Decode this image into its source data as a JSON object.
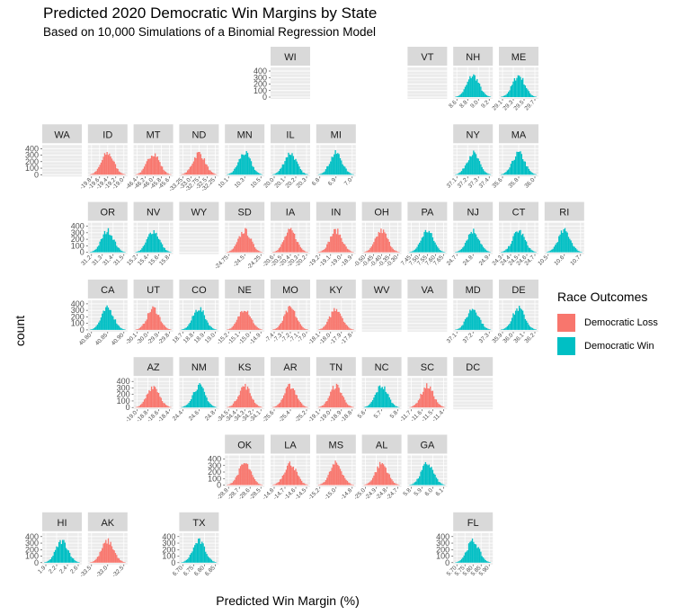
{
  "chart_data": {
    "type": "histogram-facet-map",
    "title": "Predicted 2020 Democratic Win Margins by State",
    "subtitle": "Based on 10,000 Simulations of a Binomial Regression Model",
    "xlabel": "Predicted Win Margin (%)",
    "ylabel": "count",
    "y_ticks": [
      "0",
      "100",
      "200",
      "300",
      "400"
    ],
    "ylim": [
      0,
      400
    ],
    "legend": {
      "title": "Race Outcomes",
      "position": "right",
      "entries": [
        {
          "label": "Democratic Loss",
          "color": "#F8766D"
        },
        {
          "label": "Democratic Win",
          "color": "#00BFC4"
        }
      ]
    },
    "panels": [
      {
        "state": "WI",
        "row": 0,
        "col": 5,
        "outcome": "none",
        "ticks": [],
        "show_y": true
      },
      {
        "state": "VT",
        "row": 0,
        "col": 8,
        "outcome": "none",
        "ticks": [],
        "show_y": false
      },
      {
        "state": "NH",
        "row": 0,
        "col": 9,
        "outcome": "win",
        "ticks": [
          "8.6",
          "8.8",
          "9.0",
          "9.2"
        ],
        "show_y": false
      },
      {
        "state": "ME",
        "row": 0,
        "col": 10,
        "outcome": "win",
        "ticks": [
          "29.1",
          "29.3",
          "29.5",
          "29.7"
        ],
        "show_y": false
      },
      {
        "state": "WA",
        "row": 1,
        "col": 0,
        "outcome": "none",
        "ticks": [],
        "show_y": true
      },
      {
        "state": "ID",
        "row": 1,
        "col": 1,
        "outcome": "loss",
        "ticks": [
          "-19.8",
          "-19.6",
          "-19.4",
          "-19.2",
          "-19.0"
        ],
        "show_y": false
      },
      {
        "state": "MT",
        "row": 1,
        "col": 2,
        "outcome": "loss",
        "ticks": [
          "-46.4",
          "-46.2",
          "-46.0",
          "-45.8",
          "-45.6"
        ],
        "show_y": false
      },
      {
        "state": "ND",
        "row": 1,
        "col": 3,
        "outcome": "loss",
        "ticks": [
          "-33.25",
          "-33.0",
          "-32.75",
          "-32.5",
          "-32.25"
        ],
        "show_y": false
      },
      {
        "state": "MN",
        "row": 1,
        "col": 4,
        "outcome": "win",
        "ticks": [
          "10.1",
          "10.3",
          "10.5"
        ],
        "show_y": false
      },
      {
        "state": "IL",
        "row": 1,
        "col": 5,
        "outcome": "win",
        "ticks": [
          "20.0",
          "20.1",
          "20.2",
          "20.3"
        ],
        "show_y": false
      },
      {
        "state": "MI",
        "row": 1,
        "col": 6,
        "outcome": "win",
        "ticks": [
          "6.8",
          "6.9",
          "7.0"
        ],
        "show_y": false
      },
      {
        "state": "NY",
        "row": 1,
        "col": 9,
        "outcome": "win",
        "ticks": [
          "37.1",
          "37.2",
          "37.3",
          "37.4"
        ],
        "show_y": false
      },
      {
        "state": "MA",
        "row": 1,
        "col": 10,
        "outcome": "win",
        "ticks": [
          "35.6",
          "35.8",
          "36.0"
        ],
        "show_y": false
      },
      {
        "state": "OR",
        "row": 2,
        "col": 1,
        "outcome": "win",
        "ticks": [
          "31.2",
          "31.3",
          "31.4",
          "31.5"
        ],
        "show_y": true
      },
      {
        "state": "NV",
        "row": 2,
        "col": 2,
        "outcome": "win",
        "ticks": [
          "15.2",
          "15.4",
          "15.6",
          "15.8"
        ],
        "show_y": false
      },
      {
        "state": "WY",
        "row": 2,
        "col": 3,
        "outcome": "none",
        "ticks": [],
        "show_y": false
      },
      {
        "state": "SD",
        "row": 2,
        "col": 4,
        "outcome": "loss",
        "ticks": [
          "-24.75",
          "-24.5",
          "-24.25"
        ],
        "show_y": false
      },
      {
        "state": "IA",
        "row": 2,
        "col": 5,
        "outcome": "loss",
        "ticks": [
          "-20.6",
          "-20.5",
          "-20.4",
          "-20.3",
          "-20.2"
        ],
        "show_y": false
      },
      {
        "state": "IN",
        "row": 2,
        "col": 6,
        "outcome": "loss",
        "ticks": [
          "-19.2",
          "-19.1",
          "-19.0",
          "-18.9"
        ],
        "show_y": false
      },
      {
        "state": "OH",
        "row": 2,
        "col": 7,
        "outcome": "loss",
        "ticks": [
          "-0.50",
          "-0.45",
          "-0.40",
          "-0.35",
          "-0.30"
        ],
        "show_y": false
      },
      {
        "state": "PA",
        "row": 2,
        "col": 8,
        "outcome": "win",
        "ticks": [
          "7.45",
          "7.50",
          "7.55",
          "7.60",
          "7.65"
        ],
        "show_y": false
      },
      {
        "state": "NJ",
        "row": 2,
        "col": 9,
        "outcome": "win",
        "ticks": [
          "24.7",
          "24.8",
          "24.9"
        ],
        "show_y": false
      },
      {
        "state": "CT",
        "row": 2,
        "col": 10,
        "outcome": "win",
        "ticks": [
          "24.3",
          "24.4",
          "24.5",
          "24.6",
          "24.7"
        ],
        "show_y": false
      },
      {
        "state": "RI",
        "row": 2,
        "col": 11,
        "outcome": "win",
        "ticks": [
          "10.5",
          "10.6",
          "10.7"
        ],
        "show_y": false
      },
      {
        "state": "CA",
        "row": 3,
        "col": 1,
        "outcome": "win",
        "ticks": [
          "40.80",
          "40.85",
          "40.90"
        ],
        "show_y": true
      },
      {
        "state": "UT",
        "row": 3,
        "col": 2,
        "outcome": "loss",
        "ticks": [
          "-30.1",
          "-30.0",
          "-29.9",
          "-29.8"
        ],
        "show_y": false
      },
      {
        "state": "CO",
        "row": 3,
        "col": 3,
        "outcome": "win",
        "ticks": [
          "18.7",
          "18.8",
          "18.9",
          "19.0"
        ],
        "show_y": false
      },
      {
        "state": "NE",
        "row": 3,
        "col": 4,
        "outcome": "loss",
        "ticks": [
          "-15.2",
          "-15.1",
          "-15.0",
          "-14.9"
        ],
        "show_y": false
      },
      {
        "state": "MO",
        "row": 3,
        "col": 5,
        "outcome": "loss",
        "ticks": [
          "-7.4",
          "-7.3",
          "-7.2",
          "-7.1",
          "-7.0"
        ],
        "show_y": false
      },
      {
        "state": "KY",
        "row": 3,
        "col": 6,
        "outcome": "loss",
        "ticks": [
          "-18.1",
          "-18.0",
          "-17.9",
          "-17.8"
        ],
        "show_y": false
      },
      {
        "state": "WV",
        "row": 3,
        "col": 7,
        "outcome": "none",
        "ticks": [],
        "show_y": false
      },
      {
        "state": "VA",
        "row": 3,
        "col": 8,
        "outcome": "none",
        "ticks": [],
        "show_y": false
      },
      {
        "state": "MD",
        "row": 3,
        "col": 9,
        "outcome": "win",
        "ticks": [
          "37.1",
          "37.2",
          "37.3"
        ],
        "show_y": false
      },
      {
        "state": "DE",
        "row": 3,
        "col": 10,
        "outcome": "win",
        "ticks": [
          "35.9",
          "36.0",
          "36.1",
          "36.2"
        ],
        "show_y": false
      },
      {
        "state": "AZ",
        "row": 4,
        "col": 2,
        "outcome": "loss",
        "ticks": [
          "-19.0",
          "-18.8",
          "-18.6",
          "-18.4"
        ],
        "show_y": true
      },
      {
        "state": "NM",
        "row": 4,
        "col": 3,
        "outcome": "win",
        "ticks": [
          "24.4",
          "24.6",
          "24.8"
        ],
        "show_y": false
      },
      {
        "state": "KS",
        "row": 4,
        "col": 4,
        "outcome": "loss",
        "ticks": [
          "-34.5",
          "-34.4",
          "-34.3",
          "-34.2",
          "-34.1"
        ],
        "show_y": false
      },
      {
        "state": "AR",
        "row": 4,
        "col": 5,
        "outcome": "loss",
        "ticks": [
          "-25.6",
          "-25.4",
          "-25.2"
        ],
        "show_y": false
      },
      {
        "state": "TN",
        "row": 4,
        "col": 6,
        "outcome": "loss",
        "ticks": [
          "-19.1",
          "-19.0",
          "-18.9",
          "-18.8"
        ],
        "show_y": false
      },
      {
        "state": "NC",
        "row": 4,
        "col": 7,
        "outcome": "win",
        "ticks": [
          "5.6",
          "5.7",
          "5.8"
        ],
        "show_y": false
      },
      {
        "state": "SC",
        "row": 4,
        "col": 8,
        "outcome": "loss",
        "ticks": [
          "-11.7",
          "-11.6",
          "-11.5",
          "-11.4"
        ],
        "show_y": false
      },
      {
        "state": "DC",
        "row": 4,
        "col": 9,
        "outcome": "none",
        "ticks": [],
        "show_y": false
      },
      {
        "state": "OK",
        "row": 5,
        "col": 4,
        "outcome": "loss",
        "ticks": [
          "-28.8",
          "-28.7",
          "-28.6",
          "-28.5"
        ],
        "show_y": true
      },
      {
        "state": "LA",
        "row": 5,
        "col": 5,
        "outcome": "loss",
        "ticks": [
          "-14.8",
          "-14.7",
          "-14.6",
          "-14.5"
        ],
        "show_y": false
      },
      {
        "state": "MS",
        "row": 5,
        "col": 6,
        "outcome": "loss",
        "ticks": [
          "-15.2",
          "-15.0",
          "-14.8"
        ],
        "show_y": false
      },
      {
        "state": "AL",
        "row": 5,
        "col": 7,
        "outcome": "loss",
        "ticks": [
          "-25.0",
          "-24.9",
          "-24.8",
          "-24.7"
        ],
        "show_y": false
      },
      {
        "state": "GA",
        "row": 5,
        "col": 8,
        "outcome": "win",
        "ticks": [
          "5.8",
          "5.9",
          "6.0",
          "6.1"
        ],
        "show_y": false
      },
      {
        "state": "HI",
        "row": 6,
        "col": 0,
        "outcome": "win",
        "ticks": [
          "1.9",
          "2.2",
          "2.4",
          "2.6"
        ],
        "show_y": true
      },
      {
        "state": "AK",
        "row": 6,
        "col": 1,
        "outcome": "loss",
        "ticks": [
          "-33.5",
          "-33.0",
          "-32.5"
        ],
        "show_y": false
      },
      {
        "state": "TX",
        "row": 6,
        "col": 3,
        "outcome": "win",
        "ticks": [
          "6.70",
          "6.75",
          "6.80",
          "6.85"
        ],
        "show_y": true
      },
      {
        "state": "FL",
        "row": 6,
        "col": 9,
        "outcome": "win",
        "ticks": [
          "5.70",
          "5.75",
          "5.80",
          "5.85",
          "5.90"
        ],
        "show_y": true
      }
    ]
  }
}
